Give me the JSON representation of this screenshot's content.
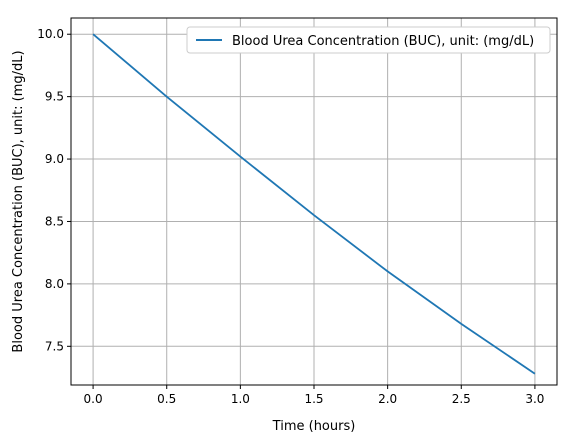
{
  "chart_data": {
    "type": "line",
    "title": "",
    "xlabel": "Time (hours)",
    "ylabel": "Blood Urea Concentration (BUC), unit: (mg/dL)",
    "xlim": [
      -0.15,
      3.15
    ],
    "ylim": [
      7.19,
      10.13
    ],
    "xticks": [
      0.0,
      0.5,
      1.0,
      1.5,
      2.0,
      2.5,
      3.0
    ],
    "xtick_labels": [
      "0.0",
      "0.5",
      "1.0",
      "1.5",
      "2.0",
      "2.5",
      "3.0"
    ],
    "yticks": [
      7.5,
      8.0,
      8.5,
      9.0,
      9.5,
      10.0
    ],
    "ytick_labels": [
      "7.5",
      "8.0",
      "8.5",
      "9.0",
      "9.5",
      "10.0"
    ],
    "grid": true,
    "legend_position": "top-right",
    "series": [
      {
        "name": "Blood Urea Concentration (BUC), unit: (mg/dL)",
        "color": "#1f77b4",
        "x": [
          0.0,
          0.5,
          1.0,
          1.5,
          2.0,
          2.5,
          3.0
        ],
        "y": [
          10.0,
          9.5,
          9.02,
          8.55,
          8.1,
          7.68,
          7.28
        ]
      }
    ]
  }
}
